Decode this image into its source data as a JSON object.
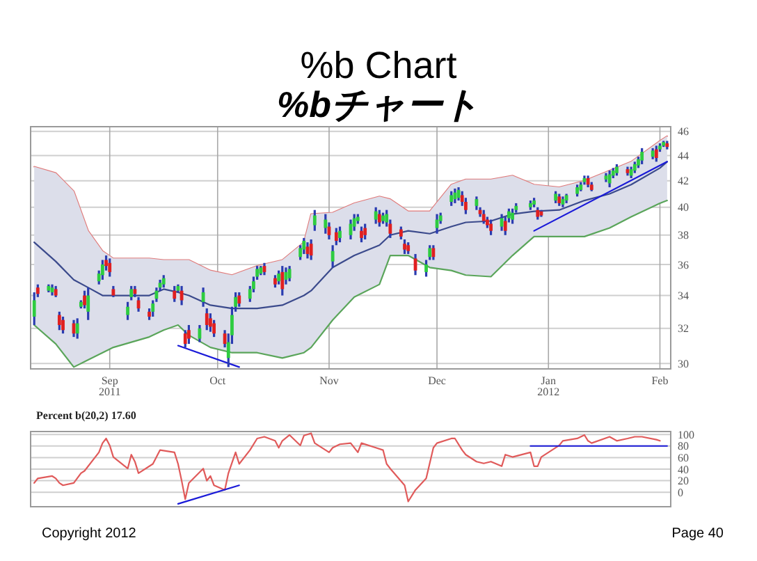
{
  "chart_data": [
    {
      "type": "candlestick",
      "title": "%b Chart",
      "subtitle": "%bチャート",
      "log": true,
      "grid": true,
      "xlim": [
        "2011-08-10",
        "2012-02-04"
      ],
      "xticks": [
        {
          "value": "2011-09-01",
          "label": "Sep 2011"
        },
        {
          "value": "2011-10-01",
          "label": "Oct"
        },
        {
          "value": "2011-11-01",
          "label": "Nov"
        },
        {
          "value": "2011-12-01",
          "label": "Dec"
        },
        {
          "value": "2012-01-01",
          "label": "Jan 2012"
        },
        {
          "value": "2012-02-01",
          "label": "Feb"
        }
      ],
      "ylim": [
        29.7,
        46.4
      ],
      "yticks": [
        30,
        32,
        34,
        36,
        38,
        40,
        42,
        44,
        46
      ],
      "x": [
        "2011-08-11",
        "2011-08-12",
        "2011-08-15",
        "2011-08-16",
        "2011-08-17",
        "2011-08-18",
        "2011-08-19",
        "2011-08-22",
        "2011-08-23",
        "2011-08-24",
        "2011-08-25",
        "2011-08-26",
        "2011-08-29",
        "2011-08-30",
        "2011-08-31",
        "2011-09-01",
        "2011-09-02",
        "2011-09-06",
        "2011-09-07",
        "2011-09-08",
        "2011-09-09",
        "2011-09-12",
        "2011-09-13",
        "2011-09-14",
        "2011-09-15",
        "2011-09-16",
        "2011-09-19",
        "2011-09-20",
        "2011-09-21",
        "2011-09-22",
        "2011-09-23",
        "2011-09-26",
        "2011-09-27",
        "2011-09-28",
        "2011-09-29",
        "2011-09-30",
        "2011-10-03",
        "2011-10-04",
        "2011-10-05",
        "2011-10-06",
        "2011-10-07",
        "2011-10-10",
        "2011-10-11",
        "2011-10-12",
        "2011-10-13",
        "2011-10-14",
        "2011-10-17",
        "2011-10-18",
        "2011-10-19",
        "2011-10-20",
        "2011-10-21",
        "2011-10-24",
        "2011-10-25",
        "2011-10-26",
        "2011-10-27",
        "2011-10-28",
        "2011-10-31",
        "2011-11-01",
        "2011-11-02",
        "2011-11-03",
        "2011-11-04",
        "2011-11-07",
        "2011-11-08",
        "2011-11-09",
        "2011-11-10",
        "2011-11-11",
        "2011-11-14",
        "2011-11-15",
        "2011-11-16",
        "2011-11-17",
        "2011-11-18",
        "2011-11-21",
        "2011-11-22",
        "2011-11-23",
        "2011-11-25",
        "2011-11-28",
        "2011-11-29",
        "2011-11-30",
        "2011-12-01",
        "2011-12-02",
        "2011-12-05",
        "2011-12-06",
        "2011-12-07",
        "2011-12-08",
        "2011-12-09",
        "2011-12-12",
        "2011-12-13",
        "2011-12-14",
        "2011-12-15",
        "2011-12-16",
        "2011-12-19",
        "2011-12-20",
        "2011-12-21",
        "2011-12-22",
        "2011-12-23",
        "2011-12-27",
        "2011-12-28",
        "2011-12-29",
        "2011-12-30",
        "2012-01-03",
        "2012-01-04",
        "2012-01-05",
        "2012-01-06",
        "2012-01-09",
        "2012-01-10",
        "2012-01-11",
        "2012-01-12",
        "2012-01-13",
        "2012-01-17",
        "2012-01-18",
        "2012-01-19",
        "2012-01-20",
        "2012-01-23",
        "2012-01-24",
        "2012-01-25",
        "2012-01-26",
        "2012-01-27",
        "2012-01-30",
        "2012-01-31",
        "2012-02-01",
        "2012-02-02",
        "2012-02-03"
      ],
      "ohlc": [
        [
          32.7,
          34.2,
          32.2,
          33.7
        ],
        [
          34.5,
          34.7,
          33.9,
          34.1
        ],
        [
          34.3,
          34.7,
          34.2,
          34.6
        ],
        [
          34.2,
          34.7,
          34.0,
          34.5
        ],
        [
          34.4,
          34.6,
          33.9,
          34.0
        ],
        [
          32.8,
          33.0,
          31.9,
          32.2
        ],
        [
          32.5,
          32.7,
          31.7,
          31.9
        ],
        [
          32.3,
          32.5,
          31.5,
          31.7
        ],
        [
          31.7,
          32.6,
          31.4,
          32.3
        ],
        [
          33.3,
          33.7,
          33.2,
          33.6
        ],
        [
          34.0,
          34.3,
          33.2,
          33.4
        ],
        [
          33.0,
          34.5,
          32.5,
          34.0
        ],
        [
          34.9,
          35.6,
          34.7,
          35.4
        ],
        [
          35.3,
          36.3,
          35.0,
          36.0
        ],
        [
          36.3,
          36.6,
          35.6,
          35.9
        ],
        [
          36.1,
          36.4,
          35.2,
          35.5
        ],
        [
          34.4,
          34.6,
          33.9,
          34.0
        ],
        [
          32.8,
          33.6,
          32.5,
          33.3
        ],
        [
          33.9,
          34.6,
          33.7,
          34.4
        ],
        [
          34.4,
          34.6,
          33.9,
          34.1
        ],
        [
          33.7,
          33.9,
          33.0,
          33.2
        ],
        [
          33.0,
          33.2,
          32.5,
          32.7
        ],
        [
          33.0,
          33.7,
          32.7,
          33.5
        ],
        [
          33.8,
          34.5,
          33.6,
          34.3
        ],
        [
          34.5,
          35.0,
          34.3,
          34.8
        ],
        [
          34.7,
          35.3,
          34.5,
          35.1
        ],
        [
          34.3,
          34.6,
          33.6,
          33.8
        ],
        [
          34.3,
          34.7,
          34.2,
          34.6
        ],
        [
          34.3,
          34.6,
          33.4,
          33.7
        ],
        [
          31.7,
          31.9,
          30.9,
          31.1
        ],
        [
          31.9,
          32.2,
          31.1,
          31.4
        ],
        [
          31.4,
          32.2,
          31.2,
          32.0
        ],
        [
          33.6,
          34.5,
          33.3,
          34.2
        ],
        [
          32.9,
          33.2,
          31.9,
          32.2
        ],
        [
          32.6,
          32.9,
          31.8,
          32.1
        ],
        [
          32.3,
          32.5,
          31.5,
          31.7
        ],
        [
          31.7,
          31.9,
          30.9,
          31.1
        ],
        [
          30.3,
          31.7,
          29.8,
          31.2
        ],
        [
          31.6,
          33.3,
          31.1,
          32.8
        ],
        [
          33.3,
          34.2,
          33.0,
          33.9
        ],
        [
          34.0,
          34.2,
          33.3,
          33.5
        ],
        [
          33.8,
          34.6,
          33.6,
          34.4
        ],
        [
          34.4,
          35.2,
          34.2,
          34.9
        ],
        [
          35.2,
          35.9,
          35.0,
          35.7
        ],
        [
          35.4,
          35.9,
          35.3,
          35.8
        ],
        [
          35.9,
          36.1,
          35.3,
          35.5
        ],
        [
          35.1,
          35.3,
          34.5,
          34.7
        ],
        [
          34.9,
          35.6,
          34.7,
          35.4
        ],
        [
          35.5,
          35.9,
          34.0,
          34.4
        ],
        [
          35.0,
          35.8,
          34.7,
          35.5
        ],
        [
          35.1,
          35.9,
          34.9,
          35.7
        ],
        [
          36.5,
          37.3,
          36.3,
          37.1
        ],
        [
          37.0,
          37.8,
          36.7,
          37.6
        ],
        [
          37.2,
          37.5,
          36.4,
          36.7
        ],
        [
          37.4,
          37.7,
          36.3,
          36.6
        ],
        [
          38.7,
          39.8,
          38.3,
          39.4
        ],
        [
          38.5,
          39.5,
          38.1,
          39.1
        ],
        [
          38.6,
          38.9,
          37.7,
          38.0
        ],
        [
          36.2,
          37.3,
          35.8,
          36.9
        ],
        [
          38.2,
          38.5,
          37.3,
          37.6
        ],
        [
          37.8,
          38.6,
          37.5,
          38.3
        ],
        [
          38.0,
          39.1,
          37.7,
          38.8
        ],
        [
          38.6,
          39.5,
          38.3,
          39.2
        ],
        [
          39.0,
          39.5,
          38.8,
          39.3
        ],
        [
          38.3,
          38.6,
          37.5,
          37.8
        ],
        [
          38.5,
          38.8,
          37.7,
          38.0
        ],
        [
          39.1,
          40.0,
          38.8,
          39.7
        ],
        [
          39.5,
          39.8,
          38.6,
          38.9
        ],
        [
          39.0,
          39.6,
          38.8,
          39.4
        ],
        [
          38.9,
          39.8,
          38.6,
          39.5
        ],
        [
          38.8,
          39.1,
          37.8,
          38.1
        ],
        [
          38.4,
          38.6,
          37.7,
          37.9
        ],
        [
          37.4,
          37.7,
          36.7,
          37.0
        ],
        [
          37.3,
          37.5,
          36.7,
          36.9
        ],
        [
          36.4,
          36.7,
          35.3,
          35.6
        ],
        [
          35.5,
          36.3,
          35.2,
          36.0
        ],
        [
          36.5,
          37.3,
          36.3,
          37.1
        ],
        [
          37.1,
          37.3,
          36.3,
          36.5
        ],
        [
          38.5,
          39.5,
          38.1,
          39.1
        ],
        [
          39.0,
          39.6,
          38.8,
          39.4
        ],
        [
          40.4,
          41.2,
          40.1,
          40.9
        ],
        [
          40.6,
          41.4,
          40.3,
          41.1
        ],
        [
          40.7,
          41.5,
          40.5,
          41.3
        ],
        [
          40.9,
          41.2,
          40.1,
          40.4
        ],
        [
          40.4,
          40.7,
          39.5,
          39.8
        ],
        [
          40.1,
          40.8,
          39.8,
          40.6
        ],
        [
          39.8,
          40.0,
          39.3,
          39.5
        ],
        [
          39.5,
          39.8,
          38.8,
          39.0
        ],
        [
          39.1,
          39.3,
          38.5,
          38.7
        ],
        [
          38.8,
          39.1,
          38.0,
          38.3
        ],
        [
          38.6,
          39.5,
          38.3,
          39.2
        ],
        [
          39.0,
          39.3,
          38.0,
          38.3
        ],
        [
          39.2,
          39.9,
          38.9,
          39.7
        ],
        [
          39.1,
          39.9,
          38.8,
          39.6
        ],
        [
          39.8,
          40.3,
          39.6,
          40.1
        ],
        [
          40.0,
          40.5,
          39.8,
          40.3
        ],
        [
          40.2,
          40.7,
          40.0,
          40.5
        ],
        [
          39.8,
          40.0,
          39.1,
          39.3
        ],
        [
          39.7,
          39.8,
          39.3,
          39.4
        ],
        [
          40.5,
          41.2,
          40.3,
          41.0
        ],
        [
          40.8,
          41.0,
          40.1,
          40.3
        ],
        [
          40.2,
          40.8,
          40.0,
          40.6
        ],
        [
          40.5,
          41.0,
          40.3,
          40.9
        ],
        [
          41.0,
          41.7,
          40.8,
          41.5
        ],
        [
          41.3,
          41.9,
          41.2,
          41.7
        ],
        [
          41.9,
          42.4,
          41.7,
          42.2
        ],
        [
          42.2,
          42.4,
          41.5,
          41.7
        ],
        [
          41.7,
          41.9,
          41.2,
          41.3
        ],
        [
          42.1,
          42.6,
          41.9,
          42.4
        ],
        [
          41.8,
          42.8,
          41.5,
          42.5
        ],
        [
          42.4,
          43.0,
          42.2,
          42.8
        ],
        [
          42.6,
          43.3,
          42.4,
          43.1
        ],
        [
          42.9,
          43.1,
          42.4,
          42.6
        ],
        [
          42.4,
          43.1,
          42.2,
          42.9
        ],
        [
          42.8,
          43.5,
          42.6,
          43.3
        ],
        [
          43.2,
          43.9,
          43.0,
          43.7
        ],
        [
          43.6,
          44.6,
          43.3,
          44.3
        ],
        [
          43.9,
          44.6,
          43.7,
          44.4
        ],
        [
          44.5,
          44.8,
          43.5,
          43.8
        ],
        [
          44.5,
          45.0,
          44.3,
          44.8
        ],
        [
          44.8,
          45.2,
          44.7,
          45.1
        ],
        [
          45.0,
          45.2,
          44.5,
          44.7
        ]
      ],
      "series": [
        {
          "type": "line",
          "color": "#e07a7a",
          "x": [
            "2011-08-11",
            "2011-08-17",
            "2011-08-22",
            "2011-08-26",
            "2011-08-30",
            "2011-09-02",
            "2011-09-12",
            "2011-09-16",
            "2011-09-20",
            "2011-09-23",
            "2011-09-29",
            "2011-10-05",
            "2011-10-12",
            "2011-10-19",
            "2011-10-25",
            "2011-10-27",
            "2011-11-02",
            "2011-11-08",
            "2011-11-15",
            "2011-11-18",
            "2011-11-23",
            "2011-11-29",
            "2011-12-05",
            "2011-12-09",
            "2011-12-16",
            "2011-12-22",
            "2011-12-28",
            "2012-01-04",
            "2012-01-11",
            "2012-01-18",
            "2012-01-24",
            "2012-02-01",
            "2012-02-03"
          ],
          "values": [
            43.1,
            42.6,
            41.2,
            38.3,
            36.9,
            36.4,
            36.4,
            36.3,
            36.3,
            36.3,
            35.6,
            35.3,
            35.9,
            36.3,
            37.5,
            39.5,
            39.6,
            40.3,
            40.8,
            40.6,
            39.7,
            39.7,
            41.7,
            42.1,
            42.1,
            42.4,
            41.7,
            41.5,
            42.0,
            42.8,
            43.5,
            45.2,
            45.6
          ]
        },
        {
          "type": "line",
          "color": "#3b4a8c",
          "x": [
            "2011-08-11",
            "2011-08-17",
            "2011-08-22",
            "2011-08-26",
            "2011-08-30",
            "2011-09-02",
            "2011-09-12",
            "2011-09-16",
            "2011-09-20",
            "2011-09-23",
            "2011-09-29",
            "2011-10-05",
            "2011-10-12",
            "2011-10-19",
            "2011-10-25",
            "2011-10-27",
            "2011-11-02",
            "2011-11-08",
            "2011-11-15",
            "2011-11-18",
            "2011-11-23",
            "2011-11-29",
            "2011-12-05",
            "2011-12-09",
            "2011-12-16",
            "2011-12-22",
            "2011-12-28",
            "2012-01-04",
            "2012-01-11",
            "2012-01-18",
            "2012-01-24",
            "2012-02-01",
            "2012-02-03"
          ],
          "values": [
            37.5,
            36.2,
            35.0,
            34.5,
            34.0,
            34.0,
            34.0,
            34.4,
            34.2,
            34.0,
            33.4,
            33.2,
            33.2,
            33.4,
            34.0,
            34.3,
            35.8,
            36.6,
            37.3,
            38.0,
            38.3,
            38.1,
            38.6,
            38.9,
            39.0,
            39.5,
            39.7,
            39.8,
            40.5,
            41.0,
            41.7,
            43.0,
            43.5
          ],
          "upper": [
            43.1,
            42.6,
            41.2,
            38.3,
            36.9,
            36.4,
            36.4,
            36.3,
            36.3,
            36.3,
            35.6,
            35.3,
            35.9,
            36.3,
            37.5,
            39.5,
            39.6,
            40.3,
            40.8,
            40.6,
            39.7,
            39.7,
            41.7,
            42.1,
            42.1,
            42.4,
            41.7,
            41.5,
            42.0,
            42.8,
            43.5,
            45.2,
            45.6
          ],
          "lower": [
            32.2,
            31.1,
            29.8,
            30.2,
            30.6,
            30.9,
            31.5,
            31.9,
            32.2,
            31.6,
            30.9,
            30.6,
            30.6,
            30.3,
            30.6,
            30.9,
            32.5,
            33.9,
            34.7,
            36.6,
            36.6,
            35.8,
            35.6,
            35.3,
            35.2,
            36.6,
            37.9,
            37.9,
            37.9,
            38.5,
            39.3,
            40.3,
            40.5
          ]
        },
        {
          "type": "line",
          "color": "#5aa55a",
          "x": [
            "2011-08-11",
            "2011-08-17",
            "2011-08-22",
            "2011-08-26",
            "2011-08-30",
            "2011-09-02",
            "2011-09-12",
            "2011-09-16",
            "2011-09-20",
            "2011-09-23",
            "2011-09-29",
            "2011-10-05",
            "2011-10-12",
            "2011-10-19",
            "2011-10-25",
            "2011-10-27",
            "2011-11-02",
            "2011-11-08",
            "2011-11-15",
            "2011-11-18",
            "2011-11-23",
            "2011-11-29",
            "2011-12-05",
            "2011-12-09",
            "2011-12-16",
            "2011-12-22",
            "2011-12-28",
            "2012-01-04",
            "2012-01-11",
            "2012-01-18",
            "2012-01-24",
            "2012-02-01",
            "2012-02-03"
          ],
          "values": [
            32.2,
            31.1,
            29.8,
            30.2,
            30.6,
            30.9,
            31.5,
            31.9,
            32.2,
            31.6,
            30.9,
            30.6,
            30.6,
            30.3,
            30.6,
            30.9,
            32.5,
            33.9,
            34.7,
            36.6,
            36.6,
            35.8,
            35.6,
            35.3,
            35.2,
            36.6,
            37.9,
            37.9,
            37.9,
            38.5,
            39.3,
            40.3,
            40.5
          ]
        },
        {
          "type": "line",
          "color": "#1a1ad8",
          "x": [
            "2011-09-20",
            "2011-10-07"
          ],
          "values": [
            31.0,
            29.8
          ]
        },
        {
          "type": "line",
          "color": "#1a1ad8",
          "x": [
            "2011-12-28",
            "2012-02-03"
          ],
          "values": [
            38.3,
            43.5
          ]
        }
      ],
      "annotations": [
        "Copyright 2012",
        "Page 40"
      ]
    },
    {
      "type": "line",
      "title": "Percent b(20,2) 17.60",
      "grid": "y",
      "tick_labels": "y",
      "xlim": [
        "2011-08-10",
        "2012-02-04"
      ],
      "ylim": [
        -25,
        105
      ],
      "yticks": [
        0,
        20,
        40,
        60,
        80,
        100
      ],
      "series": [
        {
          "color": "#e05a5a",
          "x": [
            "2011-08-11",
            "2011-08-12",
            "2011-08-16",
            "2011-08-17",
            "2011-08-18",
            "2011-08-19",
            "2011-08-22",
            "2011-08-24",
            "2011-08-25",
            "2011-08-29",
            "2011-08-30",
            "2011-08-31",
            "2011-09-01",
            "2011-09-02",
            "2011-09-06",
            "2011-09-07",
            "2011-09-08",
            "2011-09-09",
            "2011-09-13",
            "2011-09-14",
            "2011-09-15",
            "2011-09-19",
            "2011-09-20",
            "2011-09-21",
            "2011-09-22",
            "2011-09-23",
            "2011-09-27",
            "2011-09-28",
            "2011-09-29",
            "2011-09-30",
            "2011-10-03",
            "2011-10-04",
            "2011-10-06",
            "2011-10-07",
            "2011-10-10",
            "2011-10-12",
            "2011-10-14",
            "2011-10-17",
            "2011-10-18",
            "2011-10-19",
            "2011-10-21",
            "2011-10-24",
            "2011-10-25",
            "2011-10-27",
            "2011-10-28",
            "2011-11-01",
            "2011-11-02",
            "2011-11-04",
            "2011-11-07",
            "2011-11-09",
            "2011-11-10",
            "2011-11-14",
            "2011-11-16",
            "2011-11-17",
            "2011-11-18",
            "2011-11-22",
            "2011-11-23",
            "2011-11-25",
            "2011-11-28",
            "2011-11-30",
            "2011-12-01",
            "2011-12-05",
            "2011-12-06",
            "2011-12-08",
            "2011-12-09",
            "2011-12-12",
            "2011-12-14",
            "2011-12-16",
            "2011-12-19",
            "2011-12-20",
            "2011-12-22",
            "2011-12-27",
            "2011-12-28",
            "2011-12-29",
            "2011-12-30",
            "2012-01-04",
            "2012-01-05",
            "2012-01-09",
            "2012-01-11",
            "2012-01-12",
            "2012-01-13",
            "2012-01-18",
            "2012-01-20",
            "2012-01-23",
            "2012-01-25",
            "2012-01-27",
            "2012-01-31",
            "2012-02-01"
          ],
          "values": [
            16,
            24,
            28,
            24,
            16,
            12,
            16,
            33,
            37,
            69,
            85,
            93,
            81,
            61,
            41,
            65,
            53,
            33,
            49,
            61,
            73,
            69,
            49,
            20,
            -12,
            16,
            41,
            20,
            28,
            12,
            4,
            33,
            69,
            49,
            73,
            93,
            96,
            89,
            77,
            89,
            99,
            81,
            98,
            102,
            85,
            69,
            77,
            83,
            85,
            69,
            85,
            77,
            73,
            49,
            41,
            12,
            -16,
            4,
            24,
            77,
            85,
            93,
            93,
            73,
            65,
            53,
            50,
            53,
            45,
            65,
            61,
            69,
            45,
            45,
            61,
            81,
            89,
            93,
            99,
            89,
            85,
            96,
            89,
            93,
            96,
            96,
            91,
            89
          ]
        },
        {
          "color": "#1a1ad8",
          "x": [
            "2011-09-20",
            "2011-10-07"
          ],
          "values": [
            -20,
            12
          ]
        },
        {
          "color": "#1a1ad8",
          "x": [
            "2011-12-27",
            "2012-02-03"
          ],
          "values": [
            80,
            80
          ]
        }
      ]
    }
  ]
}
